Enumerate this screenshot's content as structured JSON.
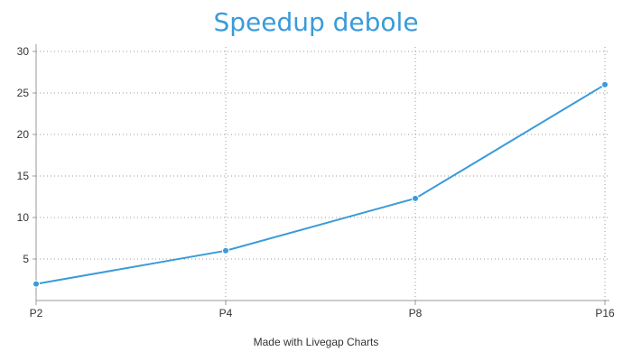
{
  "chart_data": {
    "type": "line",
    "title": "Speedup debole",
    "categories": [
      "P2",
      "P4",
      "P8",
      "P16"
    ],
    "series": [
      {
        "values": [
          2,
          6,
          12.3,
          26
        ],
        "color": "#3a9bd9"
      }
    ],
    "ylim": [
      0,
      30
    ],
    "yticks": [
      5,
      10,
      15,
      20,
      25,
      30
    ],
    "xlabel": "",
    "ylabel": "",
    "grid": true,
    "grid_style": "dotted"
  },
  "footer": {
    "credit": "Made with Livegap Charts"
  }
}
